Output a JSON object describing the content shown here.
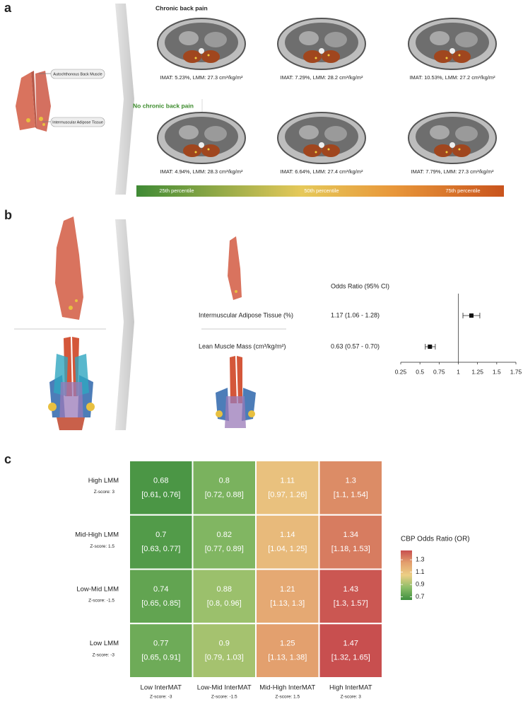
{
  "panel_a": {
    "label": "a",
    "muscle_labels": [
      "Autochthonous Back Muscle",
      "Intermuscular Adipose Tissue"
    ],
    "groups": [
      {
        "title": "Chronic back pain",
        "captions": [
          "IMAT: 5.23%, LMM: 27.3 cm³/kg/m²",
          "IMAT: 7.29%, LMM: 28.2 cm³/kg/m²",
          "IMAT: 10.53%, LMM: 27.2 cm³/kg/m²"
        ]
      },
      {
        "title": "No chronic back pain",
        "captions": [
          "IMAT: 4.94%, LMM: 28.3 cm³/kg/m²",
          "IMAT: 6.64%, LMM: 27.4 cm³/kg/m²",
          "IMAT: 7.79%, LMM: 27.3 cm³/kg/m²"
        ]
      }
    ],
    "percentiles": [
      "25th percentile",
      "50th percentile",
      "75th percentile"
    ]
  },
  "panel_b": {
    "label": "b",
    "type": "forest",
    "header": "Odds Ratio (95% CI)",
    "rows": [
      {
        "name": "Intermuscular Adipose Tissue (%)",
        "estimate_label": "1.17 (1.06 - 1.28)",
        "estimate": 1.17,
        "lower": 1.06,
        "upper": 1.28
      },
      {
        "name": "Lean Muscle Mass (cm³/kg/m²)",
        "estimate_label": "0.63 (0.57 - 0.70)",
        "estimate": 0.63,
        "lower": 0.57,
        "upper": 0.7
      }
    ],
    "xlim": [
      0.25,
      1.75
    ],
    "xticks": [
      0.25,
      0.5,
      0.75,
      1,
      1.25,
      1.5,
      1.75
    ],
    "reference": 1
  },
  "panel_c": {
    "label": "c",
    "type": "heatmap",
    "rows": [
      {
        "name": "High LMM",
        "zscore": "Z-score: 3"
      },
      {
        "name": "Mid-High LMM",
        "zscore": "Z-score: 1.5"
      },
      {
        "name": "Low-Mid LMM",
        "zscore": "Z-score: -1.5"
      },
      {
        "name": "Low LMM",
        "zscore": "Z-score: -3"
      }
    ],
    "columns": [
      {
        "name": "Low InterMAT",
        "zscore": "Z-score: -3"
      },
      {
        "name": "Low-Mid InterMAT",
        "zscore": "Z-score: -1.5"
      },
      {
        "name": "Mid-High InterMAT",
        "zscore": "Z-score: 1.5"
      },
      {
        "name": "High InterMAT",
        "zscore": "Z-score: 3"
      }
    ],
    "cells": [
      [
        {
          "value": 0.68,
          "ci": "[0.61, 0.76]"
        },
        {
          "value": 0.8,
          "ci": "[0.72, 0.88]"
        },
        {
          "value": 1.11,
          "ci": "[0.97, 1.26]"
        },
        {
          "value": 1.3,
          "ci": "[1.1, 1.54]"
        }
      ],
      [
        {
          "value": 0.7,
          "ci": "[0.63, 0.77]"
        },
        {
          "value": 0.82,
          "ci": "[0.77, 0.89]"
        },
        {
          "value": 1.14,
          "ci": "[1.04, 1.25]"
        },
        {
          "value": 1.34,
          "ci": "[1.18, 1.53]"
        }
      ],
      [
        {
          "value": 0.74,
          "ci": "[0.65, 0.85]"
        },
        {
          "value": 0.88,
          "ci": "[0.8, 0.96]"
        },
        {
          "value": 1.21,
          "ci": "[1.13, 1.3]"
        },
        {
          "value": 1.43,
          "ci": "[1.3, 1.57]"
        }
      ],
      [
        {
          "value": 0.77,
          "ci": "[0.65, 0.91]"
        },
        {
          "value": 0.9,
          "ci": "[0.79, 1.03]"
        },
        {
          "value": 1.25,
          "ci": "[1.13, 1.38]"
        },
        {
          "value": 1.47,
          "ci": "[1.32, 1.65]"
        }
      ]
    ],
    "legend": {
      "title": "CBP Odds Ratio (OR)",
      "ticks": [
        1.3,
        1.1,
        0.9,
        0.7
      ],
      "clim": [
        0.65,
        1.45
      ],
      "colors": [
        "#3f8f3f",
        "#8dbd68",
        "#eccf85",
        "#e3a06e",
        "#c84f4f"
      ]
    }
  }
}
